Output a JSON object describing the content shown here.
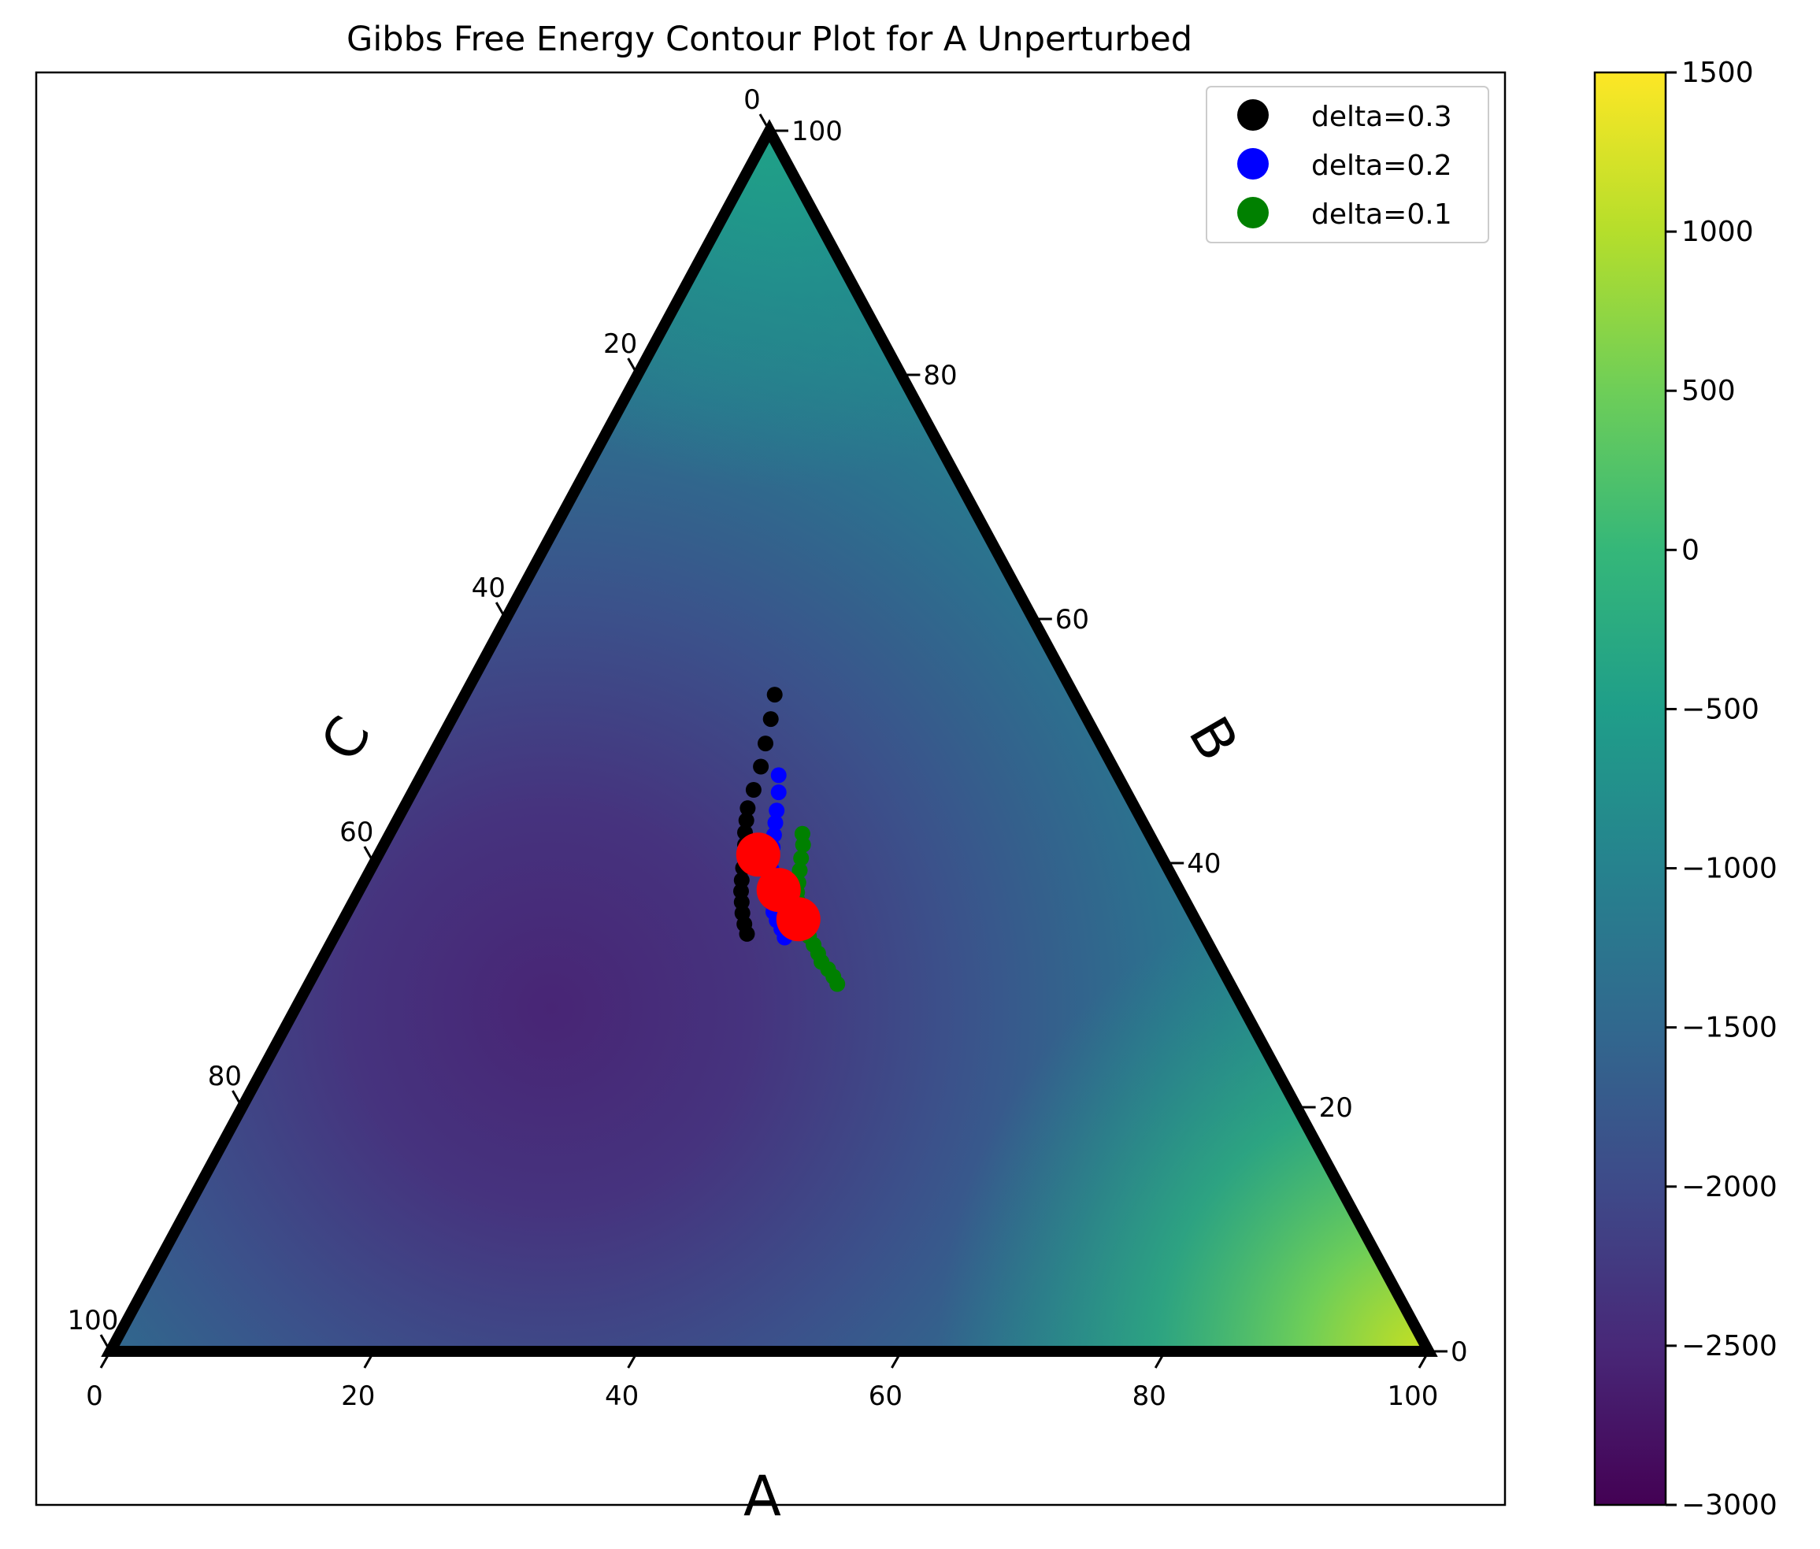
{
  "chart_data": {
    "type": "scatter",
    "subtype": "ternary",
    "title": "Gibbs Free Energy Contour Plot for A Unperturbed",
    "axes": {
      "bottom": {
        "label": "A",
        "ticks": [
          0,
          20,
          40,
          60,
          80,
          100
        ],
        "range": [
          0,
          100
        ]
      },
      "right": {
        "label": "B",
        "ticks": [
          0,
          20,
          40,
          60,
          80,
          100
        ],
        "range": [
          0,
          100
        ]
      },
      "left": {
        "label": "C",
        "ticks": [
          0,
          20,
          40,
          60,
          80,
          100
        ],
        "range": [
          0,
          100
        ]
      }
    },
    "colorbar": {
      "colormap": "viridis",
      "range": [
        -3000,
        1500
      ],
      "ticks": [
        1500,
        1000,
        500,
        0,
        -500,
        -1000,
        -1500,
        -2000,
        -2500,
        -3000
      ],
      "tick_labels": [
        "1500",
        "1000",
        "500",
        "0",
        "−500",
        "−1000",
        "−1500",
        "−2000",
        "−2500",
        "−3000"
      ]
    },
    "legend": {
      "placement": "top-right",
      "entries": [
        {
          "label": "delta=0.3",
          "color": "#000000"
        },
        {
          "label": "delta=0.2",
          "color": "#0000ff"
        },
        {
          "label": "delta=0.1",
          "color": "#008000"
        }
      ]
    },
    "series": [
      {
        "name": "delta=0.3",
        "color": "#000000",
        "points": [
          [
            23.5,
            53.8
          ],
          [
            24.2,
            51.8
          ],
          [
            24.8,
            49.8
          ],
          [
            25.4,
            47.9
          ],
          [
            25.8,
            46.0
          ],
          [
            26.1,
            44.5
          ],
          [
            26.5,
            43.5
          ],
          [
            26.9,
            42.5
          ],
          [
            27.4,
            41.5
          ],
          [
            27.9,
            40.5
          ],
          [
            28.2,
            39.6
          ],
          [
            28.6,
            38.6
          ],
          [
            29.0,
            37.7
          ],
          [
            29.5,
            36.8
          ],
          [
            30.0,
            35.9
          ],
          [
            30.6,
            35.0
          ],
          [
            31.2,
            34.2
          ]
        ]
      },
      {
        "name": "delta=0.2",
        "color": "#0000ff",
        "points": [
          [
            27.1,
            47.2
          ],
          [
            27.8,
            45.8
          ],
          [
            28.4,
            44.3
          ],
          [
            28.8,
            43.3
          ],
          [
            29.2,
            42.3
          ],
          [
            29.6,
            41.3
          ],
          [
            30.0,
            40.4
          ],
          [
            30.4,
            39.5
          ],
          [
            30.8,
            38.6
          ],
          [
            31.2,
            37.7
          ],
          [
            31.7,
            36.8
          ],
          [
            32.3,
            36.0
          ],
          [
            32.9,
            35.3
          ],
          [
            33.6,
            34.6
          ],
          [
            34.2,
            33.9
          ]
        ]
      },
      {
        "name": "delta=0.1",
        "color": "#008000",
        "points": [
          [
            31.3,
            42.4
          ],
          [
            31.8,
            41.5
          ],
          [
            32.2,
            40.4
          ],
          [
            32.6,
            39.4
          ],
          [
            33.0,
            38.4
          ],
          [
            33.3,
            37.6
          ],
          [
            33.7,
            36.9
          ],
          [
            34.2,
            36.1
          ],
          [
            34.8,
            35.4
          ],
          [
            35.4,
            34.7
          ],
          [
            36.0,
            34.0
          ],
          [
            36.7,
            33.3
          ],
          [
            37.4,
            32.6
          ],
          [
            38.0,
            31.9
          ],
          [
            38.8,
            31.3
          ],
          [
            39.5,
            30.7
          ],
          [
            40.1,
            30.1
          ]
        ]
      },
      {
        "name": "",
        "color": "#ff0000",
        "marker": "large",
        "points": [
          [
            28.8,
            40.7
          ],
          [
            31.8,
            37.8
          ],
          [
            34.5,
            35.4
          ]
        ]
      }
    ]
  }
}
